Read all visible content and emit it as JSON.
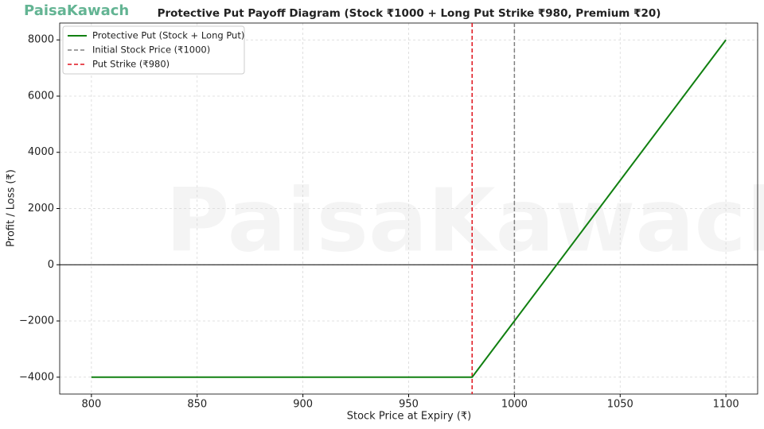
{
  "logo": "PaisaKawach",
  "chart_data": {
    "type": "line",
    "title": "Protective Put Payoff Diagram (Stock ₹1000 + Long Put Strike ₹980, Premium ₹20)",
    "x_label": "Stock Price at Expiry (₹)",
    "y_label": "Profit / Loss (₹)",
    "x": [
      800,
      980,
      1100
    ],
    "series": [
      {
        "name": "Protective Put (Stock + Long Put)",
        "color": "#118011",
        "values": [
          -4000,
          -4000,
          8000
        ]
      }
    ],
    "vlines": [
      {
        "name": "Initial Stock Price (₹1000)",
        "color": "#808080",
        "x": 1000
      },
      {
        "name": "Put Strike (₹980)",
        "color": "#e0141e",
        "x": 980
      }
    ],
    "hline": 0,
    "xlim": [
      785,
      1115
    ],
    "ylim": [
      -4600,
      8600
    ],
    "xticks": [
      800,
      850,
      900,
      950,
      1000,
      1050,
      1100
    ],
    "yticks": [
      {
        "value": -4000,
        "label": "−4000"
      },
      {
        "value": -2000,
        "label": "−2000"
      },
      0,
      2000,
      4000,
      6000,
      8000
    ],
    "grid": true,
    "legend": "upper-left"
  }
}
